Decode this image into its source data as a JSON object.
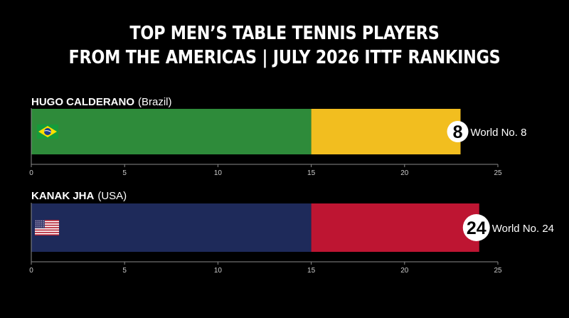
{
  "title": {
    "line1": "TOP MEN’S TABLE TENNIS PLAYERS",
    "line2": "FROM THE AMERICAS | JULY 2026 ITTF RANKINGS"
  },
  "colors": {
    "background": "#000000",
    "brazil_green": "#2E8B3A",
    "brazil_yellow": "#F2BE1F",
    "usa_navy": "#1E2A5A",
    "usa_red": "#BE1532"
  },
  "chart_data": [
    {
      "type": "bar",
      "player_name": "HUGO CALDERANO",
      "country": "(Brazil)",
      "flag_icon": "brazil-flag-icon",
      "value": 23,
      "segments": [
        {
          "from": 0,
          "to": 15,
          "color": "#2E8B3A"
        },
        {
          "from": 15,
          "to": 23,
          "color": "#F2BE1F"
        }
      ],
      "badge": "8",
      "annotation": "World No. 8",
      "xlim": [
        0,
        25
      ],
      "xticks": [
        "0",
        "5",
        "10",
        "15",
        "20",
        "25"
      ]
    },
    {
      "type": "bar",
      "player_name": "KANAK JHA",
      "country": "(USA)",
      "flag_icon": "usa-flag-icon",
      "value": 24,
      "segments": [
        {
          "from": 0,
          "to": 15,
          "color": "#1E2A5A"
        },
        {
          "from": 15,
          "to": 24,
          "color": "#BE1532"
        }
      ],
      "badge": "24",
      "annotation": "World No. 24",
      "xlim": [
        0,
        25
      ],
      "xticks": [
        "0",
        "5",
        "10",
        "15",
        "20",
        "25"
      ]
    }
  ]
}
